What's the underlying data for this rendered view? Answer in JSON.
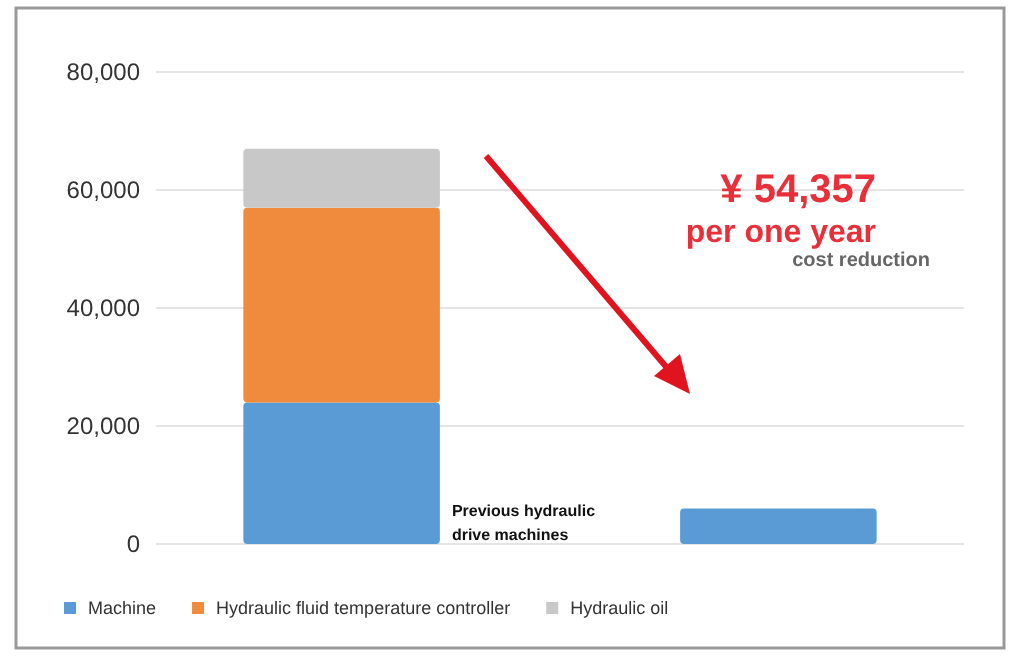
{
  "chart_data": {
    "type": "bar",
    "stacked": true,
    "categories": [
      "Previous hydraulic drive machines",
      null
    ],
    "series": [
      {
        "name": "Machine",
        "color": "#5b9bd5",
        "values": [
          24000,
          6000
        ]
      },
      {
        "name": "Hydraulic fluid temperature controller",
        "color": "#f08a3c",
        "values": [
          33000,
          null
        ]
      },
      {
        "name": "Hydraulic oil",
        "color": "#c8c8c8",
        "values": [
          10000,
          null
        ]
      }
    ],
    "ylim": [
      0,
      80000
    ],
    "yticks": [
      0,
      {
        "value": 20000,
        "label": "20,000"
      },
      {
        "value": 40000,
        "label": "40,000"
      },
      {
        "value": 60000,
        "label": "60,000"
      },
      {
        "value": 80000,
        "label": "80,000"
      }
    ],
    "grid": "y",
    "legend": "bottom",
    "annotations": [
      "¥ 54,357",
      "per one year",
      "cost reduction"
    ]
  }
}
